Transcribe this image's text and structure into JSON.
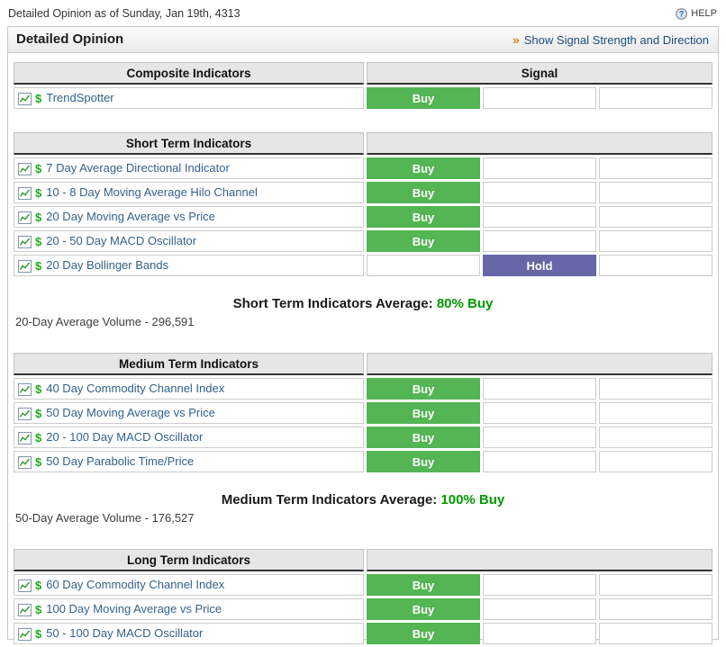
{
  "top_bar": {
    "title": "Detailed Opinion as of Sunday, Jan 19th, 4313",
    "help_label": "HELP",
    "help_icon": "question-circle"
  },
  "panel": {
    "title": "Detailed Opinion",
    "toggle_arrow": "»",
    "toggle_label": "Show Signal Strength and Direction"
  },
  "signal_colors": {
    "Buy": "#53b553",
    "Hold": "#6767a8"
  },
  "summary_value_color": "#009900",
  "row_icons": {
    "chart": "mini-chart",
    "dollar": "$"
  },
  "sections": [
    {
      "header": "Composite Indicators",
      "signal_header": "Signal",
      "rows": [
        {
          "name": "TrendSpotter",
          "signal": "Buy"
        }
      ]
    },
    {
      "header": "Short Term Indicators",
      "signal_header": "",
      "rows": [
        {
          "name": "7 Day Average Directional Indicator",
          "signal": "Buy"
        },
        {
          "name": "10 - 8 Day Moving Average Hilo Channel",
          "signal": "Buy"
        },
        {
          "name": "20 Day Moving Average vs Price",
          "signal": "Buy"
        },
        {
          "name": "20 - 50 Day MACD Oscillator",
          "signal": "Buy"
        },
        {
          "name": "20 Day Bollinger Bands",
          "signal": "Hold"
        }
      ],
      "summary_label": "Short Term Indicators Average:",
      "summary_value": "80% Buy",
      "volume_note": "20-Day Average Volume - 296,591"
    },
    {
      "header": "Medium Term Indicators",
      "signal_header": "",
      "rows": [
        {
          "name": "40 Day Commodity Channel Index",
          "signal": "Buy"
        },
        {
          "name": "50 Day Moving Average vs Price",
          "signal": "Buy"
        },
        {
          "name": "20 - 100 Day MACD Oscillator",
          "signal": "Buy"
        },
        {
          "name": "50 Day Parabolic Time/Price",
          "signal": "Buy"
        }
      ],
      "summary_label": "Medium Term Indicators Average:",
      "summary_value": "100% Buy",
      "volume_note": "50-Day Average Volume - 176,527"
    },
    {
      "header": "Long Term Indicators",
      "signal_header": "",
      "rows": [
        {
          "name": "60 Day Commodity Channel Index",
          "signal": "Buy"
        },
        {
          "name": "100 Day Moving Average vs Price",
          "signal": "Buy"
        },
        {
          "name": "50 - 100 Day MACD Oscillator",
          "signal": "Buy"
        }
      ]
    }
  ]
}
